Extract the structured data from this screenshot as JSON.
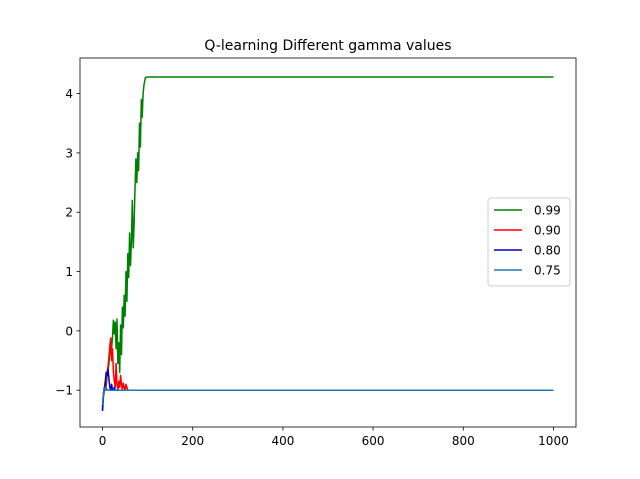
{
  "chart_data": {
    "type": "line",
    "title": "Q-learning Different gamma values",
    "xlabel": "",
    "ylabel": "",
    "xlim": [
      -50,
      1050
    ],
    "ylim": [
      -1.62,
      4.6
    ],
    "xticks": [
      0,
      200,
      400,
      600,
      800,
      1000
    ],
    "yticks": [
      -1,
      0,
      1,
      2,
      3,
      4
    ],
    "grid": false,
    "legend_position": "center right",
    "series": [
      {
        "name": "0.99",
        "color": "#008000",
        "x": [
          0,
          2,
          4,
          6,
          8,
          10,
          12,
          14,
          16,
          18,
          20,
          22,
          24,
          26,
          28,
          30,
          32,
          34,
          36,
          38,
          40,
          42,
          44,
          46,
          48,
          50,
          52,
          54,
          56,
          58,
          60,
          62,
          64,
          66,
          68,
          70,
          72,
          74,
          76,
          78,
          80,
          82,
          84,
          86,
          88,
          90,
          92,
          95,
          100,
          200,
          400,
          600,
          800,
          1000
        ],
        "y": [
          -1.33,
          -1.1,
          -1.0,
          -0.85,
          -0.95,
          -0.75,
          -0.7,
          -0.55,
          -0.4,
          -0.15,
          -0.3,
          -0.1,
          0.18,
          -0.05,
          0.15,
          -0.3,
          0.2,
          -0.55,
          -0.2,
          -0.7,
          0.1,
          -0.4,
          0.4,
          0.05,
          0.6,
          0.25,
          1.0,
          0.5,
          1.3,
          0.9,
          1.65,
          1.1,
          1.5,
          2.2,
          1.4,
          1.8,
          2.4,
          2.9,
          2.5,
          3.0,
          2.7,
          3.5,
          3.1,
          3.9,
          3.6,
          4.0,
          4.15,
          4.27,
          4.28,
          4.28,
          4.28,
          4.28,
          4.28,
          4.28
        ]
      },
      {
        "name": "0.90",
        "color": "#ff0000",
        "x": [
          0,
          2,
          4,
          6,
          8,
          10,
          12,
          14,
          16,
          18,
          20,
          22,
          24,
          26,
          28,
          30,
          32,
          34,
          36,
          38,
          40,
          42,
          44,
          46,
          48,
          50,
          52,
          54,
          56,
          58,
          60,
          100,
          200,
          400,
          600,
          800,
          1000
        ],
        "y": [
          -1.3,
          -1.05,
          -0.95,
          -1.0,
          -0.85,
          -0.7,
          -0.6,
          -0.45,
          -0.25,
          -0.12,
          -0.5,
          -0.3,
          -0.7,
          -0.85,
          -0.95,
          -0.55,
          -0.9,
          -1.0,
          -0.85,
          -0.95,
          -0.75,
          -0.9,
          -1.0,
          -0.88,
          -0.95,
          -1.0,
          -0.9,
          -0.95,
          -1.0,
          -1.0,
          -1.0,
          -1.0,
          -1.0,
          -1.0,
          -1.0,
          -1.0,
          -1.0
        ]
      },
      {
        "name": "0.80",
        "color": "#0000cc",
        "x": [
          0,
          2,
          4,
          6,
          8,
          10,
          12,
          14,
          16,
          18,
          20,
          22,
          24,
          26,
          28,
          30,
          40,
          100,
          200,
          400,
          600,
          800,
          1000
        ],
        "y": [
          -1.35,
          -1.1,
          -1.0,
          -0.85,
          -0.7,
          -0.75,
          -0.65,
          -0.8,
          -0.95,
          -1.0,
          -0.9,
          -1.0,
          -1.0,
          -0.95,
          -1.0,
          -1.0,
          -1.0,
          -1.0,
          -1.0,
          -1.0,
          -1.0,
          -1.0,
          -1.0
        ]
      },
      {
        "name": "0.75",
        "color": "#1f77b4",
        "x": [
          0,
          2,
          4,
          6,
          8,
          10,
          12,
          14,
          16,
          18,
          20,
          30,
          100,
          200,
          400,
          600,
          800,
          1000
        ],
        "y": [
          -1.25,
          -1.05,
          -1.0,
          -0.95,
          -1.0,
          -0.98,
          -1.0,
          -1.0,
          -1.0,
          -1.0,
          -1.0,
          -1.0,
          -1.0,
          -1.0,
          -1.0,
          -1.0,
          -1.0,
          -1.0
        ]
      }
    ]
  }
}
